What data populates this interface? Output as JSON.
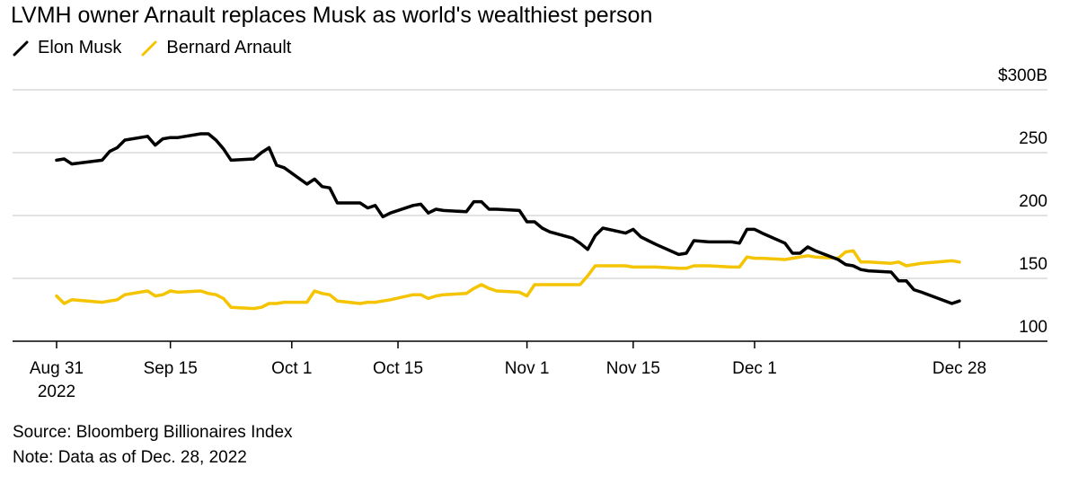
{
  "title": "LVMH owner Arnault replaces Musk as world's wealthiest person",
  "legend": [
    {
      "name": "Elon Musk",
      "color": "#000000"
    },
    {
      "name": "Bernard Arnault",
      "color": "#f5c400"
    }
  ],
  "footer": {
    "source": "Source: Bloomberg Billionaires Index",
    "note": "Note: Data as of Dec. 28, 2022"
  },
  "chart_data": {
    "type": "line",
    "title": "LVMH owner Arnault replaces Musk as world's wealthiest person",
    "xlabel": "",
    "ylabel": "",
    "ylim": [
      100,
      300
    ],
    "y_ticks": [
      {
        "value": 300,
        "label": "$300B"
      },
      {
        "value": 250,
        "label": "250"
      },
      {
        "value": 200,
        "label": "200"
      },
      {
        "value": 150,
        "label": "150"
      },
      {
        "value": 100,
        "label": "100"
      }
    ],
    "x_ticks": [
      {
        "date": "2022-08-31",
        "label": "Aug 31",
        "sublabel": "2022"
      },
      {
        "date": "2022-09-15",
        "label": "Sep 15"
      },
      {
        "date": "2022-10-01",
        "label": "Oct 1"
      },
      {
        "date": "2022-10-15",
        "label": "Oct 15"
      },
      {
        "date": "2022-11-01",
        "label": "Nov 1"
      },
      {
        "date": "2022-11-15",
        "label": "Nov 15"
      },
      {
        "date": "2022-12-01",
        "label": "Dec 1"
      },
      {
        "date": "2022-12-28",
        "label": "Dec 28"
      }
    ],
    "grid": true,
    "legend_position": "top-left",
    "series": [
      {
        "name": "Elon Musk",
        "color": "#000000",
        "points": [
          [
            "2022-08-31",
            244
          ],
          [
            "2022-09-01",
            245
          ],
          [
            "2022-09-02",
            241
          ],
          [
            "2022-09-06",
            244
          ],
          [
            "2022-09-07",
            251
          ],
          [
            "2022-09-08",
            254
          ],
          [
            "2022-09-09",
            260
          ],
          [
            "2022-09-12",
            263
          ],
          [
            "2022-09-13",
            256
          ],
          [
            "2022-09-14",
            261
          ],
          [
            "2022-09-15",
            262
          ],
          [
            "2022-09-16",
            262
          ],
          [
            "2022-09-19",
            265
          ],
          [
            "2022-09-20",
            265
          ],
          [
            "2022-09-21",
            260
          ],
          [
            "2022-09-22",
            253
          ],
          [
            "2022-09-23",
            244
          ],
          [
            "2022-09-26",
            245
          ],
          [
            "2022-09-27",
            250
          ],
          [
            "2022-09-28",
            254
          ],
          [
            "2022-09-29",
            240
          ],
          [
            "2022-09-30",
            238
          ],
          [
            "2022-10-03",
            225
          ],
          [
            "2022-10-04",
            229
          ],
          [
            "2022-10-05",
            223
          ],
          [
            "2022-10-06",
            222
          ],
          [
            "2022-10-07",
            210
          ],
          [
            "2022-10-10",
            210
          ],
          [
            "2022-10-11",
            206
          ],
          [
            "2022-10-12",
            208
          ],
          [
            "2022-10-13",
            199
          ],
          [
            "2022-10-14",
            202
          ],
          [
            "2022-10-17",
            208
          ],
          [
            "2022-10-18",
            209
          ],
          [
            "2022-10-19",
            202
          ],
          [
            "2022-10-20",
            205
          ],
          [
            "2022-10-21",
            204
          ],
          [
            "2022-10-24",
            203
          ],
          [
            "2022-10-25",
            211
          ],
          [
            "2022-10-26",
            211
          ],
          [
            "2022-10-27",
            205
          ],
          [
            "2022-10-28",
            205
          ],
          [
            "2022-10-31",
            204
          ],
          [
            "2022-11-01",
            195
          ],
          [
            "2022-11-02",
            195
          ],
          [
            "2022-11-03",
            190
          ],
          [
            "2022-11-04",
            187
          ],
          [
            "2022-11-07",
            182
          ],
          [
            "2022-11-08",
            178
          ],
          [
            "2022-11-09",
            173
          ],
          [
            "2022-11-10",
            184
          ],
          [
            "2022-11-11",
            190
          ],
          [
            "2022-11-14",
            186
          ],
          [
            "2022-11-15",
            189
          ],
          [
            "2022-11-16",
            183
          ],
          [
            "2022-11-17",
            180
          ],
          [
            "2022-11-18",
            177
          ],
          [
            "2022-11-21",
            169
          ],
          [
            "2022-11-22",
            170
          ],
          [
            "2022-11-23",
            180
          ],
          [
            "2022-11-25",
            179
          ],
          [
            "2022-11-28",
            179
          ],
          [
            "2022-11-29",
            178
          ],
          [
            "2022-11-30",
            189
          ],
          [
            "2022-12-01",
            189
          ],
          [
            "2022-12-02",
            186
          ],
          [
            "2022-12-05",
            178
          ],
          [
            "2022-12-06",
            170
          ],
          [
            "2022-12-07",
            170
          ],
          [
            "2022-12-08",
            175
          ],
          [
            "2022-12-09",
            172
          ],
          [
            "2022-12-12",
            165
          ],
          [
            "2022-12-13",
            161
          ],
          [
            "2022-12-14",
            160
          ],
          [
            "2022-12-15",
            157
          ],
          [
            "2022-12-16",
            156
          ],
          [
            "2022-12-19",
            155
          ],
          [
            "2022-12-20",
            148
          ],
          [
            "2022-12-21",
            148
          ],
          [
            "2022-12-22",
            141
          ],
          [
            "2022-12-23",
            139
          ],
          [
            "2022-12-27",
            130
          ],
          [
            "2022-12-28",
            132
          ]
        ]
      },
      {
        "name": "Bernard Arnault",
        "color": "#f5c400",
        "points": [
          [
            "2022-08-31",
            136
          ],
          [
            "2022-09-01",
            130
          ],
          [
            "2022-09-02",
            133
          ],
          [
            "2022-09-06",
            131
          ],
          [
            "2022-09-07",
            132
          ],
          [
            "2022-09-08",
            133
          ],
          [
            "2022-09-09",
            137
          ],
          [
            "2022-09-12",
            140
          ],
          [
            "2022-09-13",
            136
          ],
          [
            "2022-09-14",
            137
          ],
          [
            "2022-09-15",
            140
          ],
          [
            "2022-09-16",
            139
          ],
          [
            "2022-09-19",
            140
          ],
          [
            "2022-09-20",
            138
          ],
          [
            "2022-09-21",
            137
          ],
          [
            "2022-09-22",
            134
          ],
          [
            "2022-09-23",
            127
          ],
          [
            "2022-09-26",
            126
          ],
          [
            "2022-09-27",
            127
          ],
          [
            "2022-09-28",
            130
          ],
          [
            "2022-09-29",
            130
          ],
          [
            "2022-09-30",
            131
          ],
          [
            "2022-10-03",
            131
          ],
          [
            "2022-10-04",
            140
          ],
          [
            "2022-10-05",
            138
          ],
          [
            "2022-10-06",
            137
          ],
          [
            "2022-10-07",
            132
          ],
          [
            "2022-10-10",
            130
          ],
          [
            "2022-10-11",
            131
          ],
          [
            "2022-10-12",
            131
          ],
          [
            "2022-10-13",
            132
          ],
          [
            "2022-10-14",
            133
          ],
          [
            "2022-10-17",
            137
          ],
          [
            "2022-10-18",
            137
          ],
          [
            "2022-10-19",
            134
          ],
          [
            "2022-10-20",
            136
          ],
          [
            "2022-10-21",
            137
          ],
          [
            "2022-10-24",
            138
          ],
          [
            "2022-10-25",
            142
          ],
          [
            "2022-10-26",
            145
          ],
          [
            "2022-10-27",
            142
          ],
          [
            "2022-10-28",
            140
          ],
          [
            "2022-10-31",
            139
          ],
          [
            "2022-11-01",
            136
          ],
          [
            "2022-11-02",
            145
          ],
          [
            "2022-11-03",
            145
          ],
          [
            "2022-11-04",
            145
          ],
          [
            "2022-11-07",
            145
          ],
          [
            "2022-11-08",
            145
          ],
          [
            "2022-11-09",
            152
          ],
          [
            "2022-11-10",
            160
          ],
          [
            "2022-11-11",
            160
          ],
          [
            "2022-11-14",
            160
          ],
          [
            "2022-11-15",
            159
          ],
          [
            "2022-11-16",
            159
          ],
          [
            "2022-11-17",
            159
          ],
          [
            "2022-11-18",
            159
          ],
          [
            "2022-11-21",
            158
          ],
          [
            "2022-11-22",
            158
          ],
          [
            "2022-11-23",
            160
          ],
          [
            "2022-11-25",
            160
          ],
          [
            "2022-11-28",
            159
          ],
          [
            "2022-11-29",
            159
          ],
          [
            "2022-11-30",
            167
          ],
          [
            "2022-12-01",
            166
          ],
          [
            "2022-12-02",
            166
          ],
          [
            "2022-12-05",
            165
          ],
          [
            "2022-12-06",
            166
          ],
          [
            "2022-12-07",
            167
          ],
          [
            "2022-12-08",
            168
          ],
          [
            "2022-12-09",
            167
          ],
          [
            "2022-12-12",
            166
          ],
          [
            "2022-12-13",
            171
          ],
          [
            "2022-12-14",
            172
          ],
          [
            "2022-12-15",
            163
          ],
          [
            "2022-12-16",
            163
          ],
          [
            "2022-12-19",
            162
          ],
          [
            "2022-12-20",
            163
          ],
          [
            "2022-12-21",
            160
          ],
          [
            "2022-12-22",
            161
          ],
          [
            "2022-12-23",
            162
          ],
          [
            "2022-12-27",
            164
          ],
          [
            "2022-12-28",
            163
          ]
        ]
      }
    ]
  }
}
